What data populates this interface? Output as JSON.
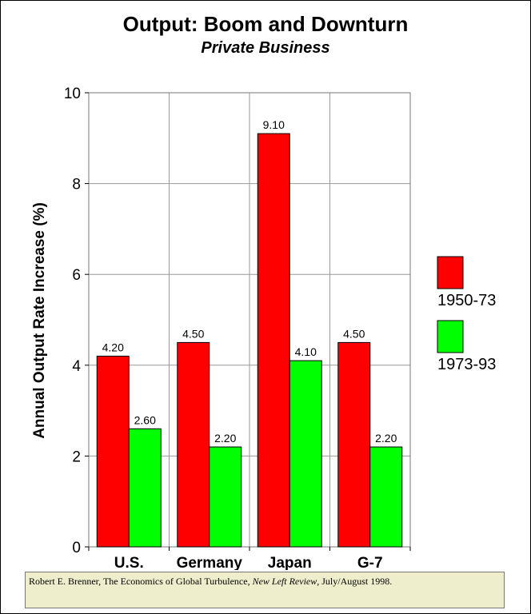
{
  "chart_data": {
    "type": "bar",
    "title": "Output: Boom and Downturn",
    "subtitle": "Private Business",
    "ylabel": "Annual Output Rate Increase (%)",
    "xlabel": "",
    "categories": [
      "U.S.",
      "Germany",
      "Japan",
      "G-7"
    ],
    "series": [
      {
        "name": "1950-73",
        "color": "#ff0000",
        "values": [
          4.2,
          4.5,
          9.1,
          4.5
        ],
        "labels": [
          "4.20",
          "4.50",
          "9.10",
          "4.50"
        ]
      },
      {
        "name": "1973-93",
        "color": "#00ff00",
        "values": [
          2.6,
          2.2,
          4.1,
          2.2
        ],
        "labels": [
          "2.60",
          "2.20",
          "4.10",
          "2.20"
        ]
      }
    ],
    "ylim": [
      0,
      10
    ],
    "yticks": [
      0,
      2,
      4,
      6,
      8,
      10
    ],
    "grid": true,
    "legend_position": "right"
  },
  "source": {
    "prefix": "Robert E. Brenner, The Economics of Global Turbulence, ",
    "journal": "New Left Review",
    "suffix": ", July/August 1998."
  }
}
